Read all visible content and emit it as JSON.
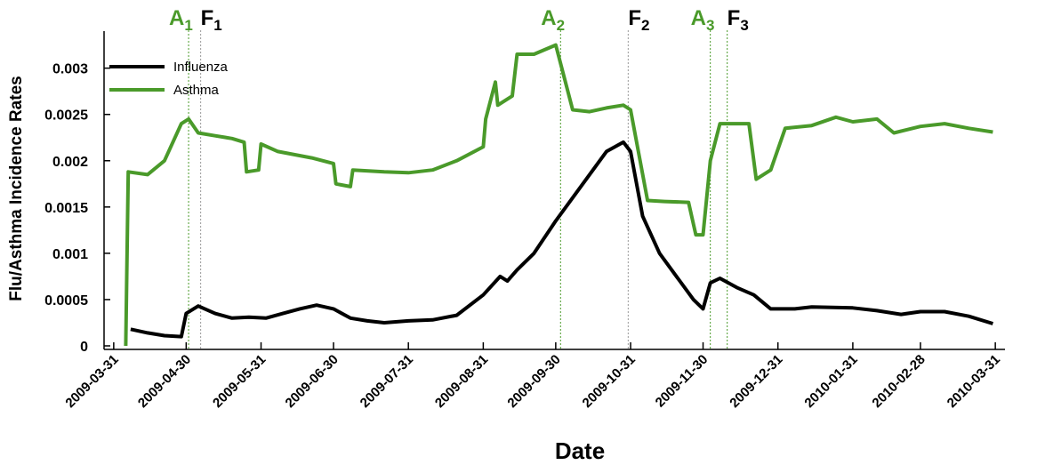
{
  "chart_data": {
    "type": "line",
    "x_label": "Date",
    "y_label": "Flu/Asthma Incidence Rates",
    "xlim": [
      "2009-03-27",
      "2010-04-04"
    ],
    "xticks": [
      "2009-03-31",
      "2009-04-30",
      "2009-05-31",
      "2009-06-30",
      "2009-07-31",
      "2009-08-31",
      "2009-09-30",
      "2009-10-31",
      "2009-11-30",
      "2009-12-31",
      "2010-01-31",
      "2010-02-28",
      "2010-03-31"
    ],
    "ylim": [
      0,
      0.0034
    ],
    "yticks": [
      0,
      0.0005,
      0.001,
      0.0015,
      0.002,
      0.0025,
      0.003
    ],
    "legend": "upper left",
    "series": [
      {
        "name": "Influenza",
        "color": "#000000",
        "x": [
          "2009-04-07",
          "2009-04-14",
          "2009-04-21",
          "2009-04-28",
          "2009-04-30",
          "2009-05-05",
          "2009-05-12",
          "2009-05-19",
          "2009-05-26",
          "2009-06-02",
          "2009-06-09",
          "2009-06-16",
          "2009-06-23",
          "2009-06-30",
          "2009-07-07",
          "2009-07-14",
          "2009-07-21",
          "2009-07-31",
          "2009-08-10",
          "2009-08-20",
          "2009-08-31",
          "2009-09-07",
          "2009-09-10",
          "2009-09-14",
          "2009-09-21",
          "2009-09-30",
          "2009-10-07",
          "2009-10-14",
          "2009-10-21",
          "2009-10-28",
          "2009-10-31",
          "2009-11-05",
          "2009-11-12",
          "2009-11-19",
          "2009-11-26",
          "2009-11-30",
          "2009-12-03",
          "2009-12-07",
          "2009-12-14",
          "2009-12-21",
          "2009-12-28",
          "2010-01-07",
          "2010-01-14",
          "2010-01-31",
          "2010-02-10",
          "2010-02-20",
          "2010-02-28",
          "2010-03-10",
          "2010-03-20",
          "2010-03-30"
        ],
        "values": [
          0.00018,
          0.00014,
          0.00011,
          0.0001,
          0.00035,
          0.00043,
          0.00035,
          0.0003,
          0.00031,
          0.0003,
          0.00035,
          0.0004,
          0.00044,
          0.0004,
          0.0003,
          0.00027,
          0.00025,
          0.00027,
          0.00028,
          0.00033,
          0.00055,
          0.00075,
          0.0007,
          0.00082,
          0.001,
          0.00135,
          0.0016,
          0.00185,
          0.0021,
          0.0022,
          0.0021,
          0.0014,
          0.001,
          0.00075,
          0.0005,
          0.0004,
          0.00068,
          0.00073,
          0.00063,
          0.00055,
          0.0004,
          0.0004,
          0.00042,
          0.00041,
          0.00038,
          0.00034,
          0.00037,
          0.00037,
          0.00032,
          0.00024
        ]
      },
      {
        "name": "Asthma",
        "color": "#4a9a2a",
        "x": [
          "2009-04-05",
          "2009-04-06",
          "2009-04-14",
          "2009-04-21",
          "2009-04-28",
          "2009-05-01",
          "2009-05-05",
          "2009-05-12",
          "2009-05-19",
          "2009-05-24",
          "2009-05-25",
          "2009-05-30",
          "2009-05-31",
          "2009-06-07",
          "2009-06-21",
          "2009-06-30",
          "2009-07-01",
          "2009-07-07",
          "2009-07-08",
          "2009-07-21",
          "2009-07-31",
          "2009-08-10",
          "2009-08-20",
          "2009-08-31",
          "2009-09-01",
          "2009-09-05",
          "2009-09-06",
          "2009-09-12",
          "2009-09-14",
          "2009-09-21",
          "2009-09-30",
          "2009-10-07",
          "2009-10-14",
          "2009-10-21",
          "2009-10-28",
          "2009-10-31",
          "2009-11-07",
          "2009-11-14",
          "2009-11-24",
          "2009-11-27",
          "2009-11-30",
          "2009-12-03",
          "2009-12-07",
          "2009-12-14",
          "2009-12-19",
          "2009-12-22",
          "2009-12-28",
          "2010-01-03",
          "2010-01-14",
          "2010-01-24",
          "2010-01-31",
          "2010-02-10",
          "2010-02-17",
          "2010-02-28",
          "2010-03-10",
          "2010-03-20",
          "2010-03-30"
        ],
        "values": [
          0,
          0.00188,
          0.00185,
          0.002,
          0.0024,
          0.00245,
          0.0023,
          0.00227,
          0.00224,
          0.0022,
          0.00188,
          0.0019,
          0.00218,
          0.0021,
          0.00203,
          0.00197,
          0.00175,
          0.00172,
          0.0019,
          0.00188,
          0.00187,
          0.0019,
          0.002,
          0.00215,
          0.00245,
          0.00285,
          0.0026,
          0.0027,
          0.00315,
          0.00315,
          0.00325,
          0.00255,
          0.00253,
          0.00257,
          0.0026,
          0.00255,
          0.00157,
          0.00156,
          0.00155,
          0.0012,
          0.0012,
          0.002,
          0.0024,
          0.0024,
          0.0024,
          0.0018,
          0.0019,
          0.00235,
          0.00238,
          0.00247,
          0.00242,
          0.00245,
          0.0023,
          0.00237,
          0.0024,
          0.00235,
          0.00231
        ]
      }
    ],
    "annotations": [
      {
        "letter": "A",
        "sub": "1",
        "x": "2009-05-01",
        "color": "#4a9a2a"
      },
      {
        "letter": "F",
        "sub": "1",
        "x": "2009-05-06",
        "color": "#000000",
        "line_color": "#999999"
      },
      {
        "letter": "A",
        "sub": "2",
        "x": "2009-10-02",
        "color": "#4a9a2a"
      },
      {
        "letter": "F",
        "sub": "2",
        "x": "2009-10-30",
        "color": "#000000",
        "line_color": "#999999"
      },
      {
        "letter": "A",
        "sub": "3",
        "x": "2009-12-03",
        "color": "#4a9a2a"
      },
      {
        "letter": "F",
        "sub": "3",
        "x": "2009-12-10",
        "color": "#000000",
        "line_color": "#4a9a2a"
      }
    ]
  }
}
